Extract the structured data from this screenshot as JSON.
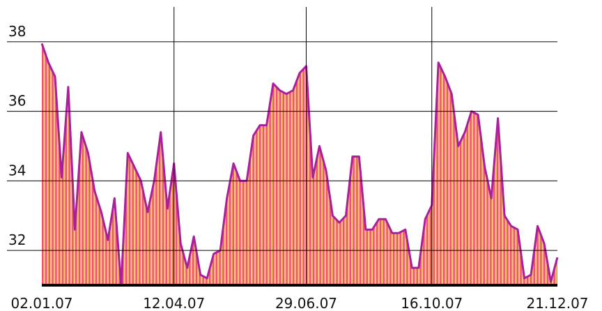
{
  "chart_data": {
    "type": "area",
    "categories": [
      "02.01.07",
      null,
      null,
      null,
      null,
      null,
      null,
      null,
      null,
      null,
      null,
      null,
      null,
      null,
      null,
      null,
      null,
      null,
      null,
      null,
      "12.04.07",
      null,
      null,
      null,
      null,
      null,
      null,
      null,
      null,
      null,
      null,
      null,
      null,
      null,
      null,
      null,
      null,
      null,
      null,
      null,
      "29.06.07",
      null,
      null,
      null,
      null,
      null,
      null,
      null,
      null,
      null,
      null,
      null,
      null,
      null,
      null,
      null,
      null,
      null,
      null,
      "16.10.07",
      null,
      null,
      null,
      null,
      null,
      null,
      null,
      null,
      null,
      null,
      null,
      null,
      null,
      null,
      null,
      null,
      null,
      null,
      "21.12.07"
    ],
    "values": [
      37.95,
      37.4,
      37.0,
      34.1,
      36.7,
      32.6,
      35.4,
      34.8,
      33.7,
      33.1,
      32.3,
      33.5,
      31.0,
      34.8,
      34.4,
      34.0,
      33.1,
      34.0,
      35.4,
      33.2,
      34.5,
      32.2,
      31.5,
      32.4,
      31.3,
      31.2,
      31.9,
      32.0,
      33.5,
      34.5,
      34.0,
      34.0,
      35.3,
      35.6,
      35.6,
      36.8,
      36.6,
      36.5,
      36.6,
      37.1,
      37.3,
      34.1,
      35.0,
      34.3,
      33.0,
      32.8,
      33.0,
      34.7,
      34.7,
      32.6,
      32.6,
      32.9,
      32.9,
      32.5,
      32.5,
      32.6,
      31.5,
      31.5,
      32.9,
      33.3,
      37.4,
      37.0,
      36.5,
      35.0,
      35.4,
      36.0,
      35.9,
      34.4,
      33.5,
      35.8,
      33.0,
      32.7,
      32.6,
      31.2,
      31.3,
      32.7,
      32.2,
      31.1,
      31.8
    ],
    "color": "#a8209c",
    "ylim": [
      31,
      39
    ],
    "yticks": [
      32,
      34,
      36,
      38
    ],
    "grid": true
  }
}
